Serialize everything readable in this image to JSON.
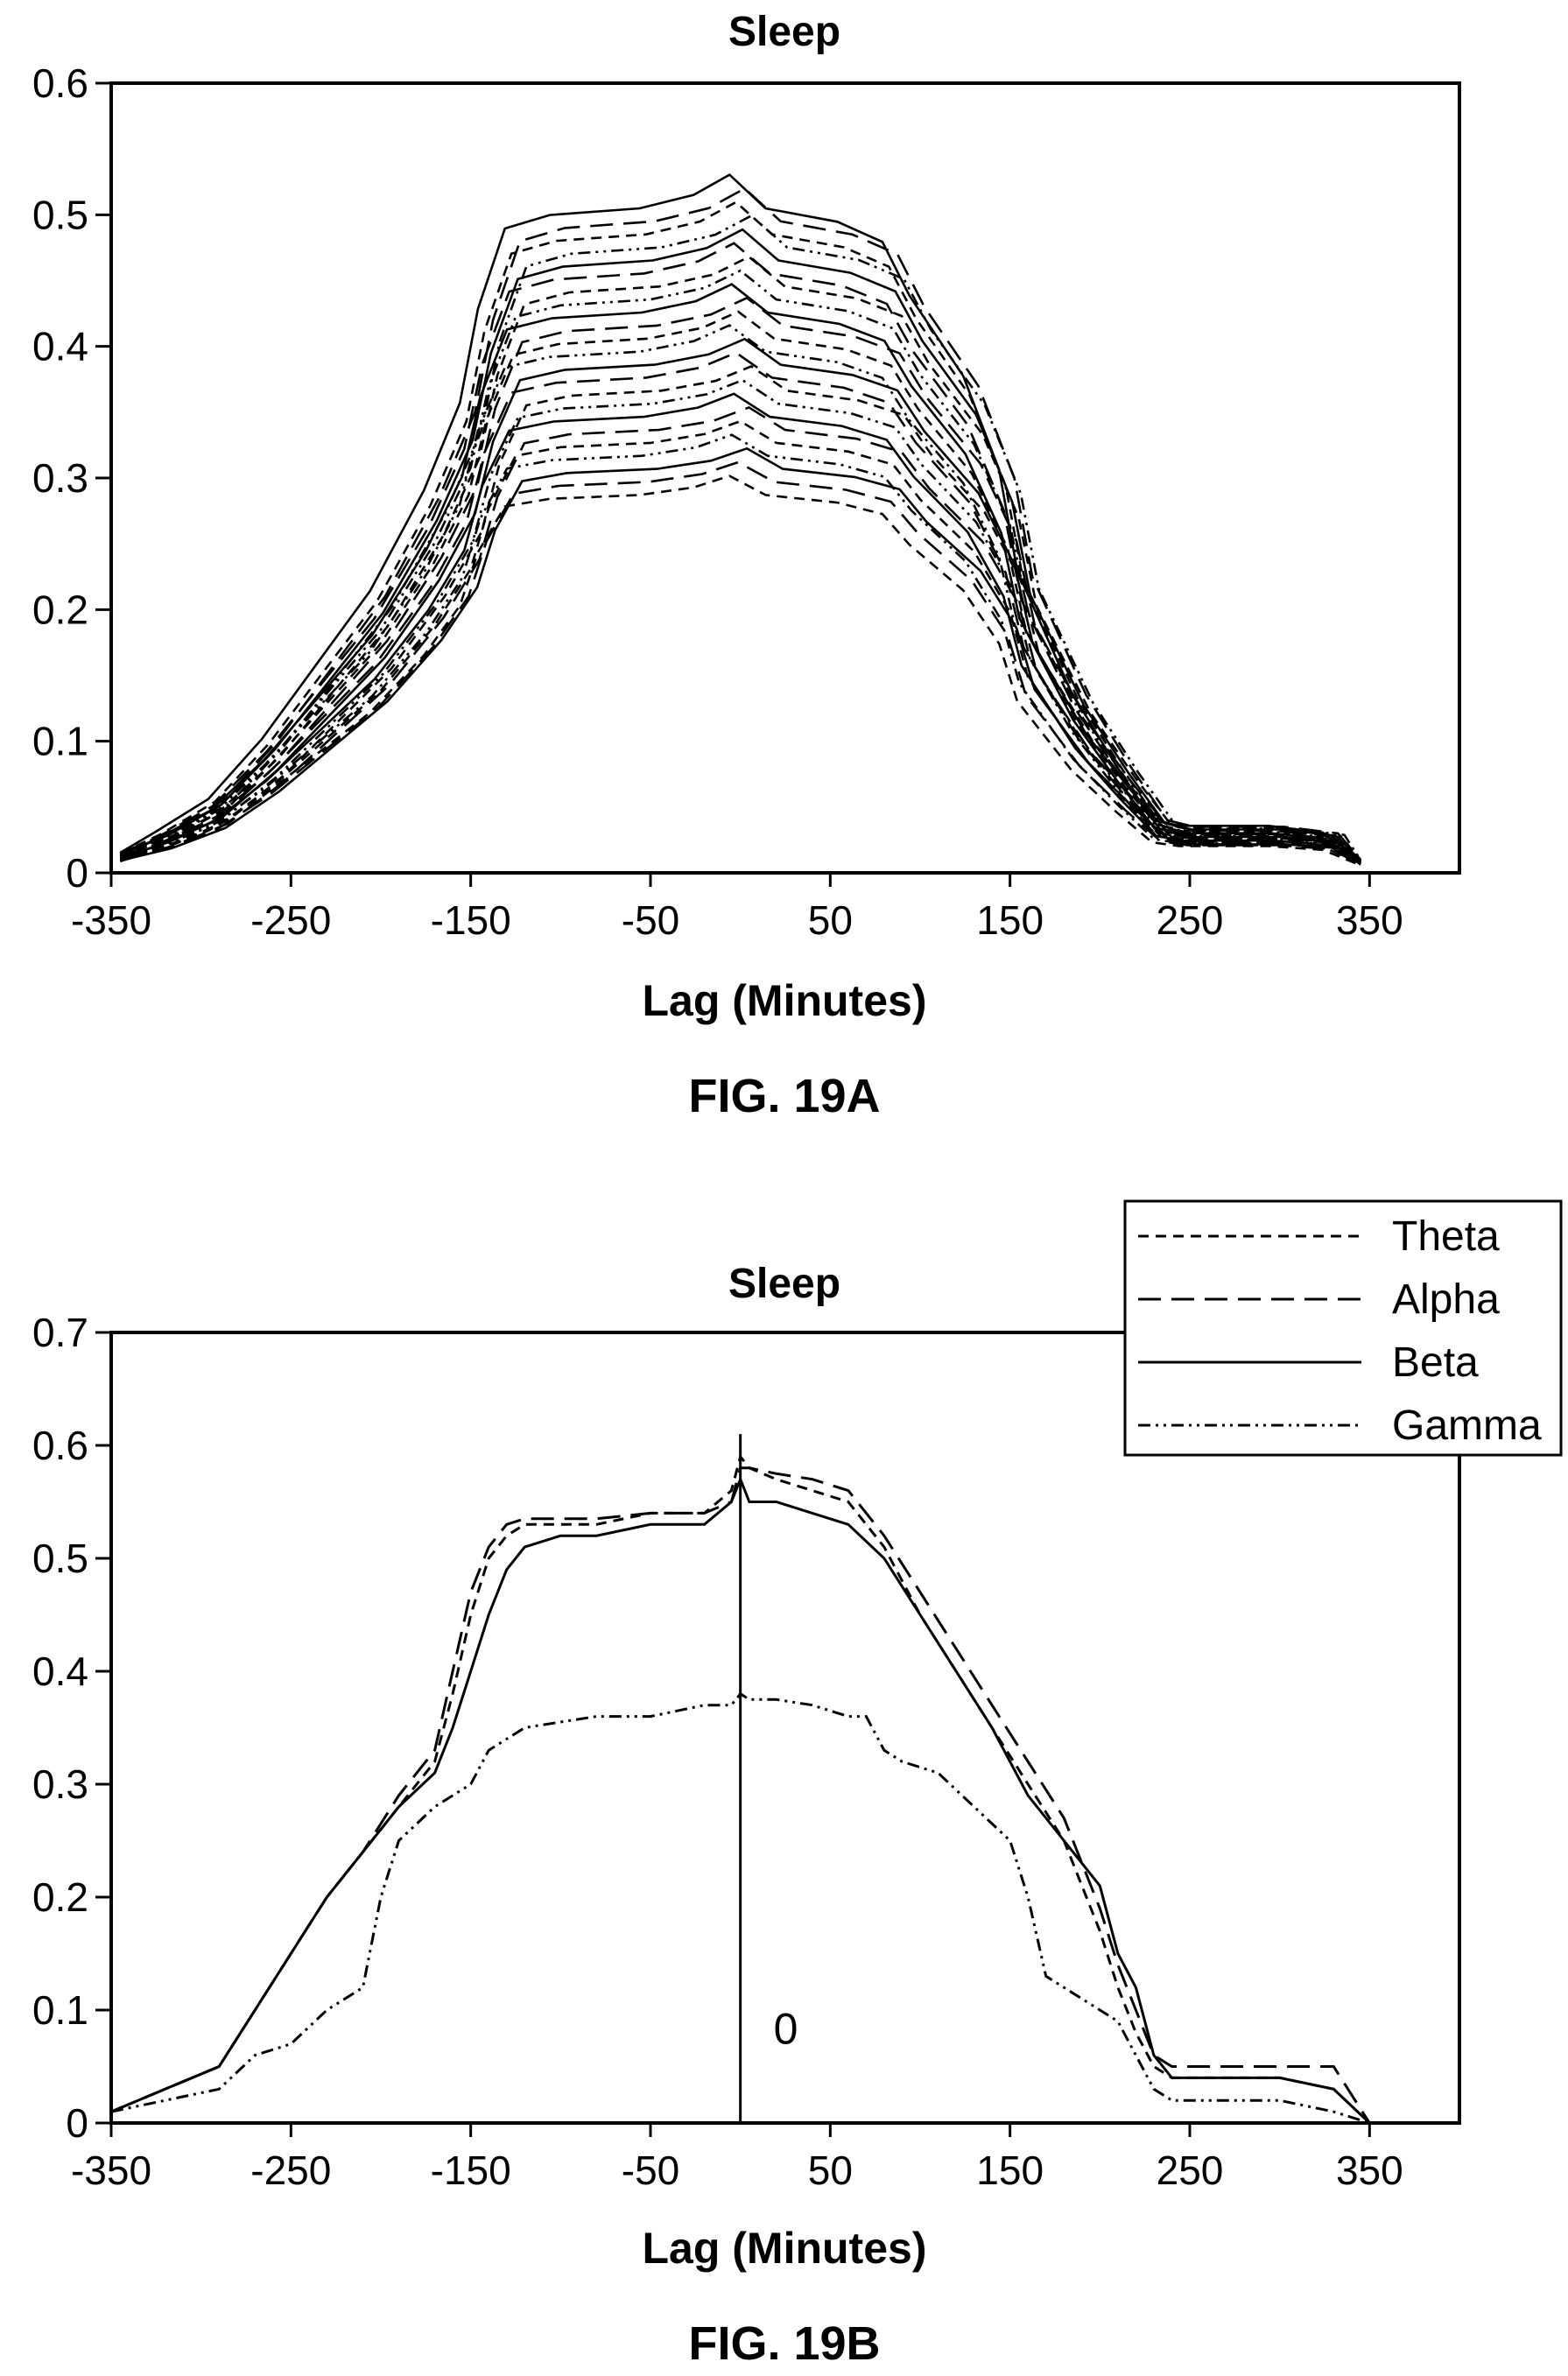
{
  "chart_data": [
    {
      "figure_label": "FIG. 19A",
      "type": "line",
      "title": "Sleep",
      "xlabel": "Lag (Minutes)",
      "ylabel": "",
      "xlim": [
        -350,
        400
      ],
      "ylim": [
        0,
        0.6
      ],
      "xticks": [
        "-350",
        "-250",
        "-150",
        "-50",
        "50",
        "150",
        "250",
        "350"
      ],
      "yticks": [
        "0",
        "0.1",
        "0.2",
        "0.3",
        "0.4",
        "0.5",
        "0.6"
      ],
      "grid": false,
      "legend": "none",
      "bundle_styles": [
        "solid",
        "dashed",
        "dashed-short",
        "dash-dot-dot"
      ],
      "bundle_plateau_levels": [
        0.51,
        0.5,
        0.49,
        0.48,
        0.47,
        0.46,
        0.45,
        0.44,
        0.43,
        0.42,
        0.41,
        0.4,
        0.39,
        0.38,
        0.37,
        0.36,
        0.35,
        0.34,
        0.33,
        0.32,
        0.31,
        0.3,
        0.29
      ],
      "bundle_shape": {
        "x": [
          -345,
          -320,
          -290,
          -260,
          -230,
          -200,
          -170,
          -150,
          -140,
          -125,
          -100,
          -50,
          -20,
          0,
          20,
          60,
          85,
          100,
          130,
          150,
          160,
          190,
          215,
          235,
          250,
          300,
          330,
          345
        ],
        "y_relative": [
          0.03,
          0.06,
          0.11,
          0.2,
          0.31,
          0.42,
          0.57,
          0.7,
          0.84,
          0.96,
          0.98,
          0.99,
          1.01,
          1.04,
          0.99,
          0.97,
          0.94,
          0.86,
          0.74,
          0.6,
          0.45,
          0.27,
          0.16,
          0.08,
          0.07,
          0.07,
          0.06,
          0.02
        ]
      }
    },
    {
      "figure_label": "FIG. 19B",
      "type": "line",
      "title": "Sleep",
      "xlabel": "Lag (Minutes)",
      "ylabel": "",
      "xlim": [
        -350,
        400
      ],
      "ylim": [
        0,
        0.7
      ],
      "xticks": [
        "-350",
        "-250",
        "-150",
        "-50",
        "50",
        "150",
        "250",
        "350"
      ],
      "yticks": [
        "0",
        "0.1",
        "0.2",
        "0.3",
        "0.4",
        "0.5",
        "0.6",
        "0.7"
      ],
      "grid": false,
      "legend": "top-right",
      "vline": {
        "x": 0,
        "label": "0"
      },
      "series": [
        {
          "name": "Theta",
          "style": "dashed-short",
          "x": [
            -350,
            -320,
            -290,
            -270,
            -250,
            -230,
            -210,
            -190,
            -170,
            -160,
            -150,
            -140,
            -130,
            -120,
            -100,
            -80,
            -50,
            -20,
            -5,
            0,
            5,
            20,
            40,
            60,
            80,
            100,
            120,
            140,
            160,
            180,
            200,
            210,
            220,
            230,
            240,
            260,
            300,
            330,
            350
          ],
          "y": [
            0.01,
            0.03,
            0.05,
            0.1,
            0.15,
            0.2,
            0.24,
            0.28,
            0.32,
            0.38,
            0.45,
            0.5,
            0.52,
            0.53,
            0.53,
            0.53,
            0.54,
            0.54,
            0.56,
            0.59,
            0.58,
            0.57,
            0.56,
            0.55,
            0.51,
            0.45,
            0.4,
            0.35,
            0.3,
            0.25,
            0.17,
            0.12,
            0.08,
            0.05,
            0.04,
            0.04,
            0.04,
            0.03,
            0.0
          ]
        },
        {
          "name": "Alpha",
          "style": "dashed",
          "x": [
            -350,
            -320,
            -290,
            -270,
            -250,
            -230,
            -210,
            -190,
            -170,
            -160,
            -150,
            -140,
            -130,
            -120,
            -100,
            -80,
            -50,
            -20,
            -5,
            0,
            5,
            20,
            40,
            60,
            80,
            100,
            120,
            140,
            160,
            180,
            200,
            210,
            220,
            230,
            240,
            260,
            300,
            330,
            350
          ],
          "y": [
            0.01,
            0.03,
            0.05,
            0.1,
            0.15,
            0.2,
            0.24,
            0.29,
            0.33,
            0.4,
            0.47,
            0.51,
            0.53,
            0.535,
            0.535,
            0.535,
            0.54,
            0.54,
            0.55,
            0.58,
            0.58,
            0.575,
            0.57,
            0.56,
            0.52,
            0.47,
            0.42,
            0.37,
            0.32,
            0.27,
            0.19,
            0.14,
            0.1,
            0.06,
            0.05,
            0.05,
            0.05,
            0.05,
            0.0
          ]
        },
        {
          "name": "Beta",
          "style": "solid",
          "x": [
            -350,
            -320,
            -290,
            -270,
            -250,
            -230,
            -210,
            -190,
            -170,
            -160,
            -150,
            -140,
            -130,
            -120,
            -100,
            -80,
            -50,
            -20,
            -5,
            0,
            5,
            20,
            40,
            60,
            80,
            100,
            120,
            140,
            160,
            180,
            200,
            210,
            220,
            230,
            240,
            260,
            300,
            330,
            350
          ],
          "y": [
            0.01,
            0.03,
            0.05,
            0.1,
            0.15,
            0.2,
            0.24,
            0.28,
            0.31,
            0.35,
            0.4,
            0.45,
            0.49,
            0.51,
            0.52,
            0.52,
            0.53,
            0.53,
            0.55,
            0.57,
            0.55,
            0.55,
            0.54,
            0.53,
            0.5,
            0.45,
            0.4,
            0.35,
            0.29,
            0.25,
            0.21,
            0.15,
            0.12,
            0.06,
            0.04,
            0.04,
            0.04,
            0.03,
            0.0
          ]
        },
        {
          "name": "Gamma",
          "style": "dash-dot-dot",
          "x": [
            -350,
            -320,
            -290,
            -270,
            -250,
            -230,
            -210,
            -200,
            -190,
            -170,
            -150,
            -140,
            -130,
            -120,
            -100,
            -80,
            -50,
            -20,
            -5,
            0,
            5,
            20,
            40,
            60,
            70,
            80,
            90,
            110,
            130,
            150,
            160,
            170,
            190,
            210,
            220,
            230,
            240,
            260,
            300,
            330,
            350
          ],
          "y": [
            0.01,
            0.02,
            0.03,
            0.06,
            0.07,
            0.1,
            0.12,
            0.2,
            0.25,
            0.28,
            0.3,
            0.33,
            0.34,
            0.35,
            0.355,
            0.36,
            0.36,
            0.37,
            0.37,
            0.38,
            0.375,
            0.375,
            0.37,
            0.36,
            0.36,
            0.33,
            0.32,
            0.31,
            0.28,
            0.25,
            0.2,
            0.13,
            0.11,
            0.09,
            0.06,
            0.03,
            0.02,
            0.02,
            0.02,
            0.01,
            0.0
          ]
        }
      ]
    }
  ]
}
